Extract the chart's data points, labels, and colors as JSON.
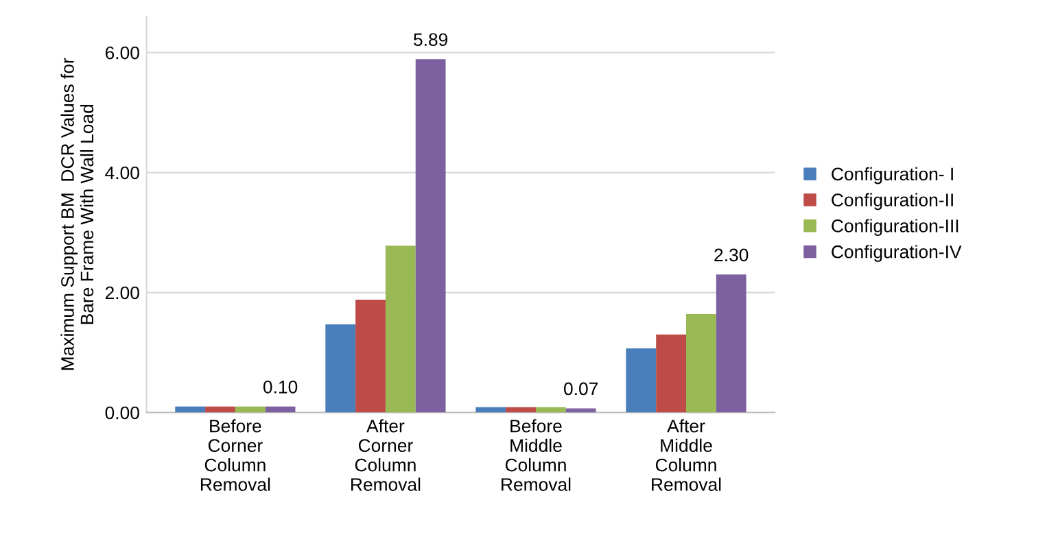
{
  "chart_data": {
    "type": "bar",
    "ylabel": "Maximum Support BM  DCR Values for\nBare Frame With Wall Load",
    "categories": [
      "Before\nCorner\nColumn\nRemoval",
      "After\nCorner\nColumn\nRemoval",
      "Before\nMiddle\nColumn\nRemoval",
      "After\nMiddle\nColumn\nRemoval"
    ],
    "series": [
      {
        "name": "Configuration- I",
        "color": "#4a7ebb",
        "values": [
          0.1,
          1.47,
          0.09,
          1.07
        ]
      },
      {
        "name": "Configuration-II",
        "color": "#be4b48",
        "values": [
          0.1,
          1.88,
          0.09,
          1.3
        ]
      },
      {
        "name": "Configuration-III",
        "color": "#98b954",
        "values": [
          0.1,
          2.78,
          0.09,
          1.64
        ]
      },
      {
        "name": "Configuration-IV",
        "color": "#7d60a0",
        "values": [
          0.1,
          5.89,
          0.07,
          2.3
        ],
        "value_labels": [
          "0.10",
          "5.89",
          "0.07",
          "2.30"
        ]
      }
    ],
    "ylim": [
      0,
      6.6
    ],
    "yticks": [
      {
        "value": 0,
        "label": "0.00"
      },
      {
        "value": 2,
        "label": "2.00"
      },
      {
        "value": 4,
        "label": "4.00"
      },
      {
        "value": 6,
        "label": "6.00"
      }
    ],
    "grid": "y",
    "legend": "right"
  }
}
